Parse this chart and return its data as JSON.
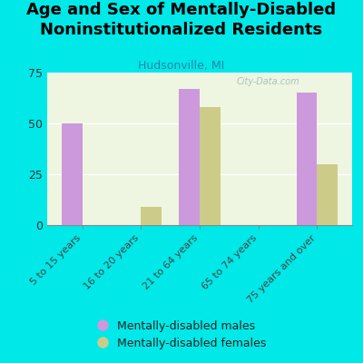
{
  "title": "Age and Sex of Mentally-Disabled\nNoninstitutionalized Residents",
  "subtitle": "Hudsonville, MI",
  "watermark": "City-Data.com",
  "categories": [
    "5 to 15 years",
    "16 to 20 years",
    "21 to 64 years",
    "65 to 74 years",
    "75 years and over"
  ],
  "males": [
    50,
    0,
    67,
    0,
    65
  ],
  "females": [
    0,
    9,
    58,
    0,
    30
  ],
  "male_color": "#cc99dd",
  "female_color": "#cccc88",
  "background_color": "#00e8e8",
  "plot_bg_color": "#eef5e0",
  "ylim": [
    0,
    75
  ],
  "yticks": [
    0,
    25,
    50,
    75
  ],
  "bar_width": 0.35,
  "title_fontsize": 13,
  "subtitle_fontsize": 9,
  "legend_labels": [
    "Mentally-disabled males",
    "Mentally-disabled females"
  ],
  "tick_color": "#888888"
}
